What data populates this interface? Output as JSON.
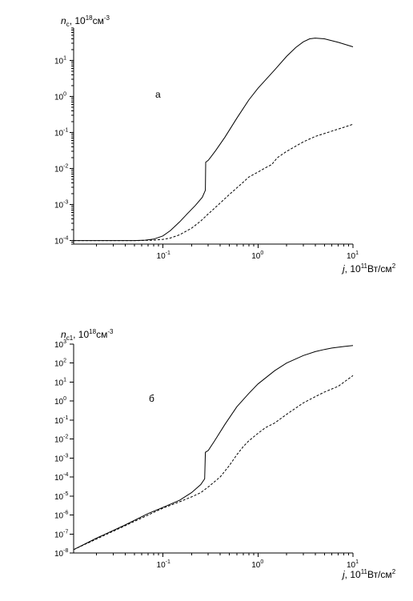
{
  "chart_data": [
    {
      "type": "line",
      "panel_label": "а",
      "ylabel": "n_c, 10^18 см^-3",
      "ylabel_parts": {
        "sym": "n",
        "sub": "c",
        "mid": ", 10",
        "exp": "18",
        "unit": "см",
        "unit_exp": "-3"
      },
      "xlabel_parts": {
        "sym": "j",
        "mid": ", 10",
        "exp": "11",
        "unit": "Вт/см",
        "unit_exp": "2"
      },
      "x_log": true,
      "y_log": true,
      "xlim": [
        0.0115,
        10
      ],
      "ylim": [
        8e-05,
        80
      ],
      "x_ticks": [
        {
          "base": "10",
          "exp": "-1",
          "value": 0.1
        },
        {
          "base": "10",
          "exp": "0",
          "value": 1
        },
        {
          "base": "10",
          "exp": "1",
          "value": 10
        }
      ],
      "y_ticks": [
        {
          "base": "10",
          "exp": "-4",
          "value": 0.0001
        },
        {
          "base": "10",
          "exp": "-3",
          "value": 0.001
        },
        {
          "base": "10",
          "exp": "-2",
          "value": 0.01
        },
        {
          "base": "10",
          "exp": "-1",
          "value": 0.1
        },
        {
          "base": "10",
          "exp": "0",
          "value": 1
        },
        {
          "base": "10",
          "exp": "1",
          "value": 10
        }
      ],
      "series": [
        {
          "style": "solid",
          "points": [
            [
              0.0115,
              0.0001
            ],
            [
              0.05,
              0.0001
            ],
            [
              0.065,
              0.000103
            ],
            [
              0.08,
              0.00011
            ],
            [
              0.1,
              0.000135
            ],
            [
              0.12,
              0.00019
            ],
            [
              0.15,
              0.00033
            ],
            [
              0.18,
              0.00055
            ],
            [
              0.22,
              0.00095
            ],
            [
              0.26,
              0.0016
            ],
            [
              0.28,
              0.0025
            ],
            [
              0.282,
              0.015
            ],
            [
              0.3,
              0.017
            ],
            [
              0.32,
              0.021
            ],
            [
              0.36,
              0.032
            ],
            [
              0.45,
              0.075
            ],
            [
              0.6,
              0.25
            ],
            [
              0.8,
              0.8
            ],
            [
              1.0,
              1.7
            ],
            [
              1.5,
              5.5
            ],
            [
              2.0,
              13
            ],
            [
              2.5,
              23
            ],
            [
              3.0,
              33
            ],
            [
              3.5,
              40
            ],
            [
              4.0,
              42
            ],
            [
              5.0,
              40
            ],
            [
              7.0,
              32
            ],
            [
              10.0,
              24
            ]
          ]
        },
        {
          "style": "dashed",
          "points": [
            [
              0.0115,
              0.0001
            ],
            [
              0.055,
              0.0001
            ],
            [
              0.08,
              0.000103
            ],
            [
              0.1,
              0.000108
            ],
            [
              0.12,
              0.000118
            ],
            [
              0.15,
              0.000145
            ],
            [
              0.2,
              0.00022
            ],
            [
              0.25,
              0.00035
            ],
            [
              0.3,
              0.00055
            ],
            [
              0.4,
              0.0011
            ],
            [
              0.5,
              0.0019
            ],
            [
              0.6,
              0.0029
            ],
            [
              0.7,
              0.0042
            ],
            [
              0.8,
              0.0058
            ],
            [
              1.0,
              0.008
            ],
            [
              1.2,
              0.0105
            ],
            [
              1.4,
              0.013
            ],
            [
              1.6,
              0.02
            ],
            [
              2.0,
              0.03
            ],
            [
              3.0,
              0.055
            ],
            [
              4.0,
              0.078
            ],
            [
              6.0,
              0.11
            ],
            [
              8.0,
              0.14
            ],
            [
              10.0,
              0.17
            ]
          ]
        }
      ]
    },
    {
      "type": "line",
      "panel_label": "б",
      "ylabel": "n_c1, 10^18 см^-3",
      "ylabel_parts": {
        "sym": "n",
        "sub": "c1",
        "mid": ", 10",
        "exp": "18",
        "unit": "см",
        "unit_exp": "-3"
      },
      "xlabel_parts": {
        "sym": "j",
        "mid": ", 10",
        "exp": "11",
        "unit": "Вт/см",
        "unit_exp": "2"
      },
      "x_log": true,
      "y_log": true,
      "xlim": [
        0.0115,
        10
      ],
      "ylim": [
        1e-08,
        1000
      ],
      "x_ticks": [
        {
          "base": "10",
          "exp": "-1",
          "value": 0.1
        },
        {
          "base": "10",
          "exp": "0",
          "value": 1
        },
        {
          "base": "10",
          "exp": "1",
          "value": 10
        }
      ],
      "y_ticks": [
        {
          "base": "10",
          "exp": "-8",
          "value": 1e-08
        },
        {
          "base": "10",
          "exp": "-7",
          "value": 1e-07
        },
        {
          "base": "10",
          "exp": "-6",
          "value": 1e-06
        },
        {
          "base": "10",
          "exp": "-5",
          "value": 1e-05
        },
        {
          "base": "10",
          "exp": "-4",
          "value": 0.0001
        },
        {
          "base": "10",
          "exp": "-3",
          "value": 0.001
        },
        {
          "base": "10",
          "exp": "-2",
          "value": 0.01
        },
        {
          "base": "10",
          "exp": "-1",
          "value": 0.1
        },
        {
          "base": "10",
          "exp": "0",
          "value": 1
        },
        {
          "base": "10",
          "exp": "1",
          "value": 10
        },
        {
          "base": "10",
          "exp": "2",
          "value": 100
        },
        {
          "base": "10",
          "exp": "3",
          "value": 1000
        }
      ],
      "series": [
        {
          "style": "solid",
          "points": [
            [
              0.0115,
              1.5e-08
            ],
            [
              0.02,
              6e-08
            ],
            [
              0.04,
              3e-07
            ],
            [
              0.07,
              1.2e-06
            ],
            [
              0.1,
              2.5e-06
            ],
            [
              0.15,
              6e-06
            ],
            [
              0.2,
              1.5e-05
            ],
            [
              0.25,
              4e-05
            ],
            [
              0.275,
              8e-05
            ],
            [
              0.28,
              0.002
            ],
            [
              0.3,
              0.0025
            ],
            [
              0.35,
              0.008
            ],
            [
              0.45,
              0.06
            ],
            [
              0.6,
              0.5
            ],
            [
              0.8,
              2.5
            ],
            [
              1.0,
              8
            ],
            [
              1.5,
              40
            ],
            [
              2.0,
              100
            ],
            [
              3.0,
              250
            ],
            [
              4.0,
              400
            ],
            [
              5.0,
              520
            ],
            [
              6.0,
              620
            ],
            [
              8.0,
              750
            ],
            [
              10.0,
              850
            ]
          ]
        },
        {
          "style": "dashed",
          "points": [
            [
              0.0115,
              1.5e-08
            ],
            [
              0.1,
              2.3e-06
            ],
            [
              0.15,
              5e-06
            ],
            [
              0.2,
              9e-06
            ],
            [
              0.25,
              1.5e-05
            ],
            [
              0.3,
              3e-05
            ],
            [
              0.4,
              0.0001
            ],
            [
              0.5,
              0.0004
            ],
            [
              0.6,
              0.0015
            ],
            [
              0.7,
              0.004
            ],
            [
              0.8,
              0.008
            ],
            [
              1.0,
              0.02
            ],
            [
              1.2,
              0.04
            ],
            [
              1.5,
              0.07
            ],
            [
              2.0,
              0.2
            ],
            [
              3.0,
              0.8
            ],
            [
              4.0,
              1.7
            ],
            [
              5.0,
              3
            ],
            [
              7.0,
              6
            ],
            [
              10.0,
              22
            ]
          ]
        }
      ]
    }
  ]
}
